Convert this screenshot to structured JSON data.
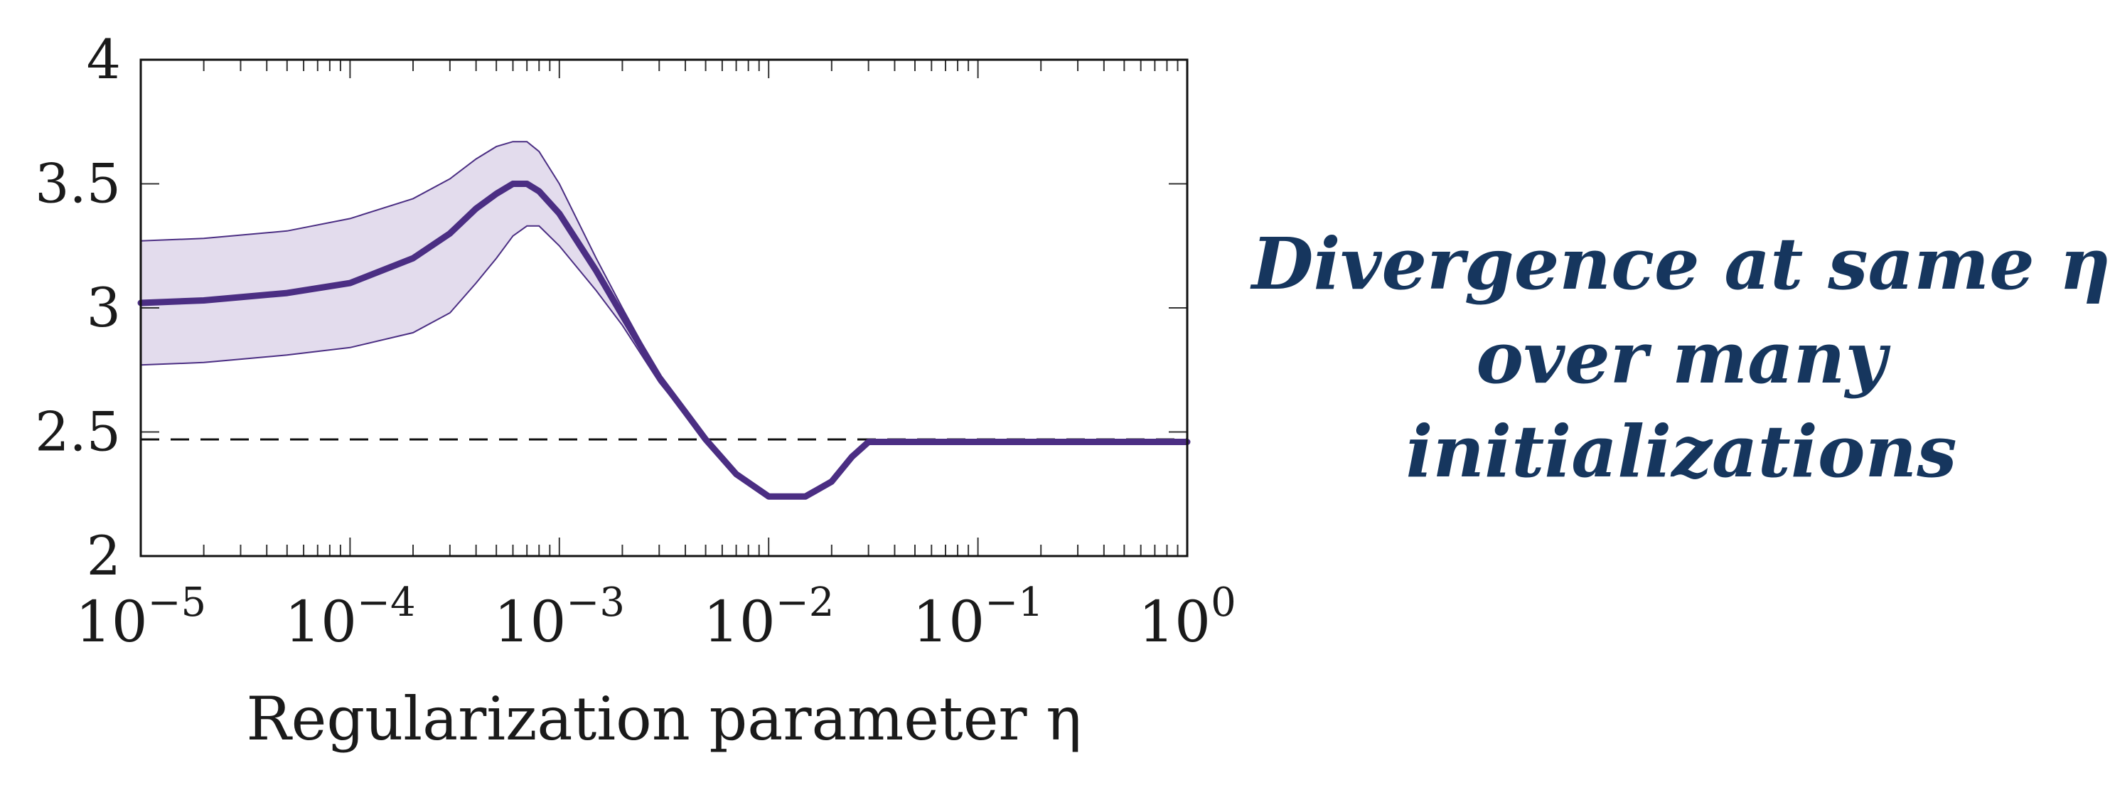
{
  "chart_data": {
    "type": "line",
    "xlabel": "Regularization parameter η",
    "xscale": "log",
    "xlim": [
      1e-05,
      1
    ],
    "ylim": [
      2,
      4
    ],
    "xticks": [
      1e-05,
      0.0001,
      0.001,
      0.01,
      0.1,
      1
    ],
    "xtick_labels": [
      {
        "base": "10",
        "exp": "−5"
      },
      {
        "base": "10",
        "exp": "−4"
      },
      {
        "base": "10",
        "exp": "−3"
      },
      {
        "base": "10",
        "exp": "−2"
      },
      {
        "base": "10",
        "exp": "−1"
      },
      {
        "base": "10",
        "exp": "0"
      }
    ],
    "yticks": [
      2,
      2.5,
      3,
      3.5,
      4
    ],
    "ytick_labels": [
      "2",
      "2.5",
      "3",
      "3.5",
      "4"
    ],
    "grid": false,
    "colors": {
      "line": "#4b2e83",
      "band": "#e3dced",
      "band_edge": "#4b2e83",
      "reference": "#111111"
    },
    "series": [
      {
        "style": "mean-line",
        "x": [
          1e-05,
          2e-05,
          5e-05,
          0.0001,
          0.0002,
          0.0003,
          0.0004,
          0.0005,
          0.0006,
          0.0007,
          0.0008,
          0.001,
          0.0015,
          0.002,
          0.003,
          0.004,
          0.005,
          0.007,
          0.01,
          0.015,
          0.02,
          0.025,
          0.03,
          0.1,
          1
        ],
        "y": [
          3.02,
          3.03,
          3.06,
          3.1,
          3.2,
          3.3,
          3.4,
          3.46,
          3.5,
          3.5,
          3.47,
          3.38,
          3.15,
          2.97,
          2.72,
          2.58,
          2.47,
          2.33,
          2.24,
          2.24,
          2.3,
          2.4,
          2.46,
          2.46,
          2.46
        ]
      },
      {
        "style": "band-upper",
        "x": [
          1e-05,
          2e-05,
          5e-05,
          0.0001,
          0.0002,
          0.0003,
          0.0004,
          0.0005,
          0.0006,
          0.0007,
          0.0008,
          0.001,
          0.0015,
          0.002,
          0.003,
          0.004,
          0.005,
          0.007,
          0.01,
          0.015,
          0.02,
          0.025,
          0.03,
          0.1,
          1
        ],
        "y": [
          3.27,
          3.28,
          3.31,
          3.36,
          3.44,
          3.52,
          3.6,
          3.65,
          3.67,
          3.67,
          3.63,
          3.5,
          3.2,
          3.0,
          2.73,
          2.58,
          2.47,
          2.33,
          2.24,
          2.24,
          2.3,
          2.4,
          2.46,
          2.46,
          2.46
        ]
      },
      {
        "style": "band-lower",
        "x": [
          1e-05,
          2e-05,
          5e-05,
          0.0001,
          0.0002,
          0.0003,
          0.0004,
          0.0005,
          0.0006,
          0.0007,
          0.0008,
          0.001,
          0.0015,
          0.002,
          0.003,
          0.004,
          0.005,
          0.007,
          0.01,
          0.015,
          0.02,
          0.025,
          0.03,
          0.1,
          1
        ],
        "y": [
          2.77,
          2.78,
          2.81,
          2.84,
          2.9,
          2.98,
          3.1,
          3.2,
          3.29,
          3.33,
          3.33,
          3.25,
          3.07,
          2.93,
          2.7,
          2.57,
          2.47,
          2.33,
          2.24,
          2.24,
          2.3,
          2.4,
          2.46,
          2.46,
          2.46
        ]
      },
      {
        "style": "reference-dashed",
        "x": [
          1e-05,
          1
        ],
        "y": [
          2.47,
          2.47
        ]
      }
    ],
    "annotation_lines": [
      "Divergence at same η",
      "over many initializations"
    ]
  }
}
